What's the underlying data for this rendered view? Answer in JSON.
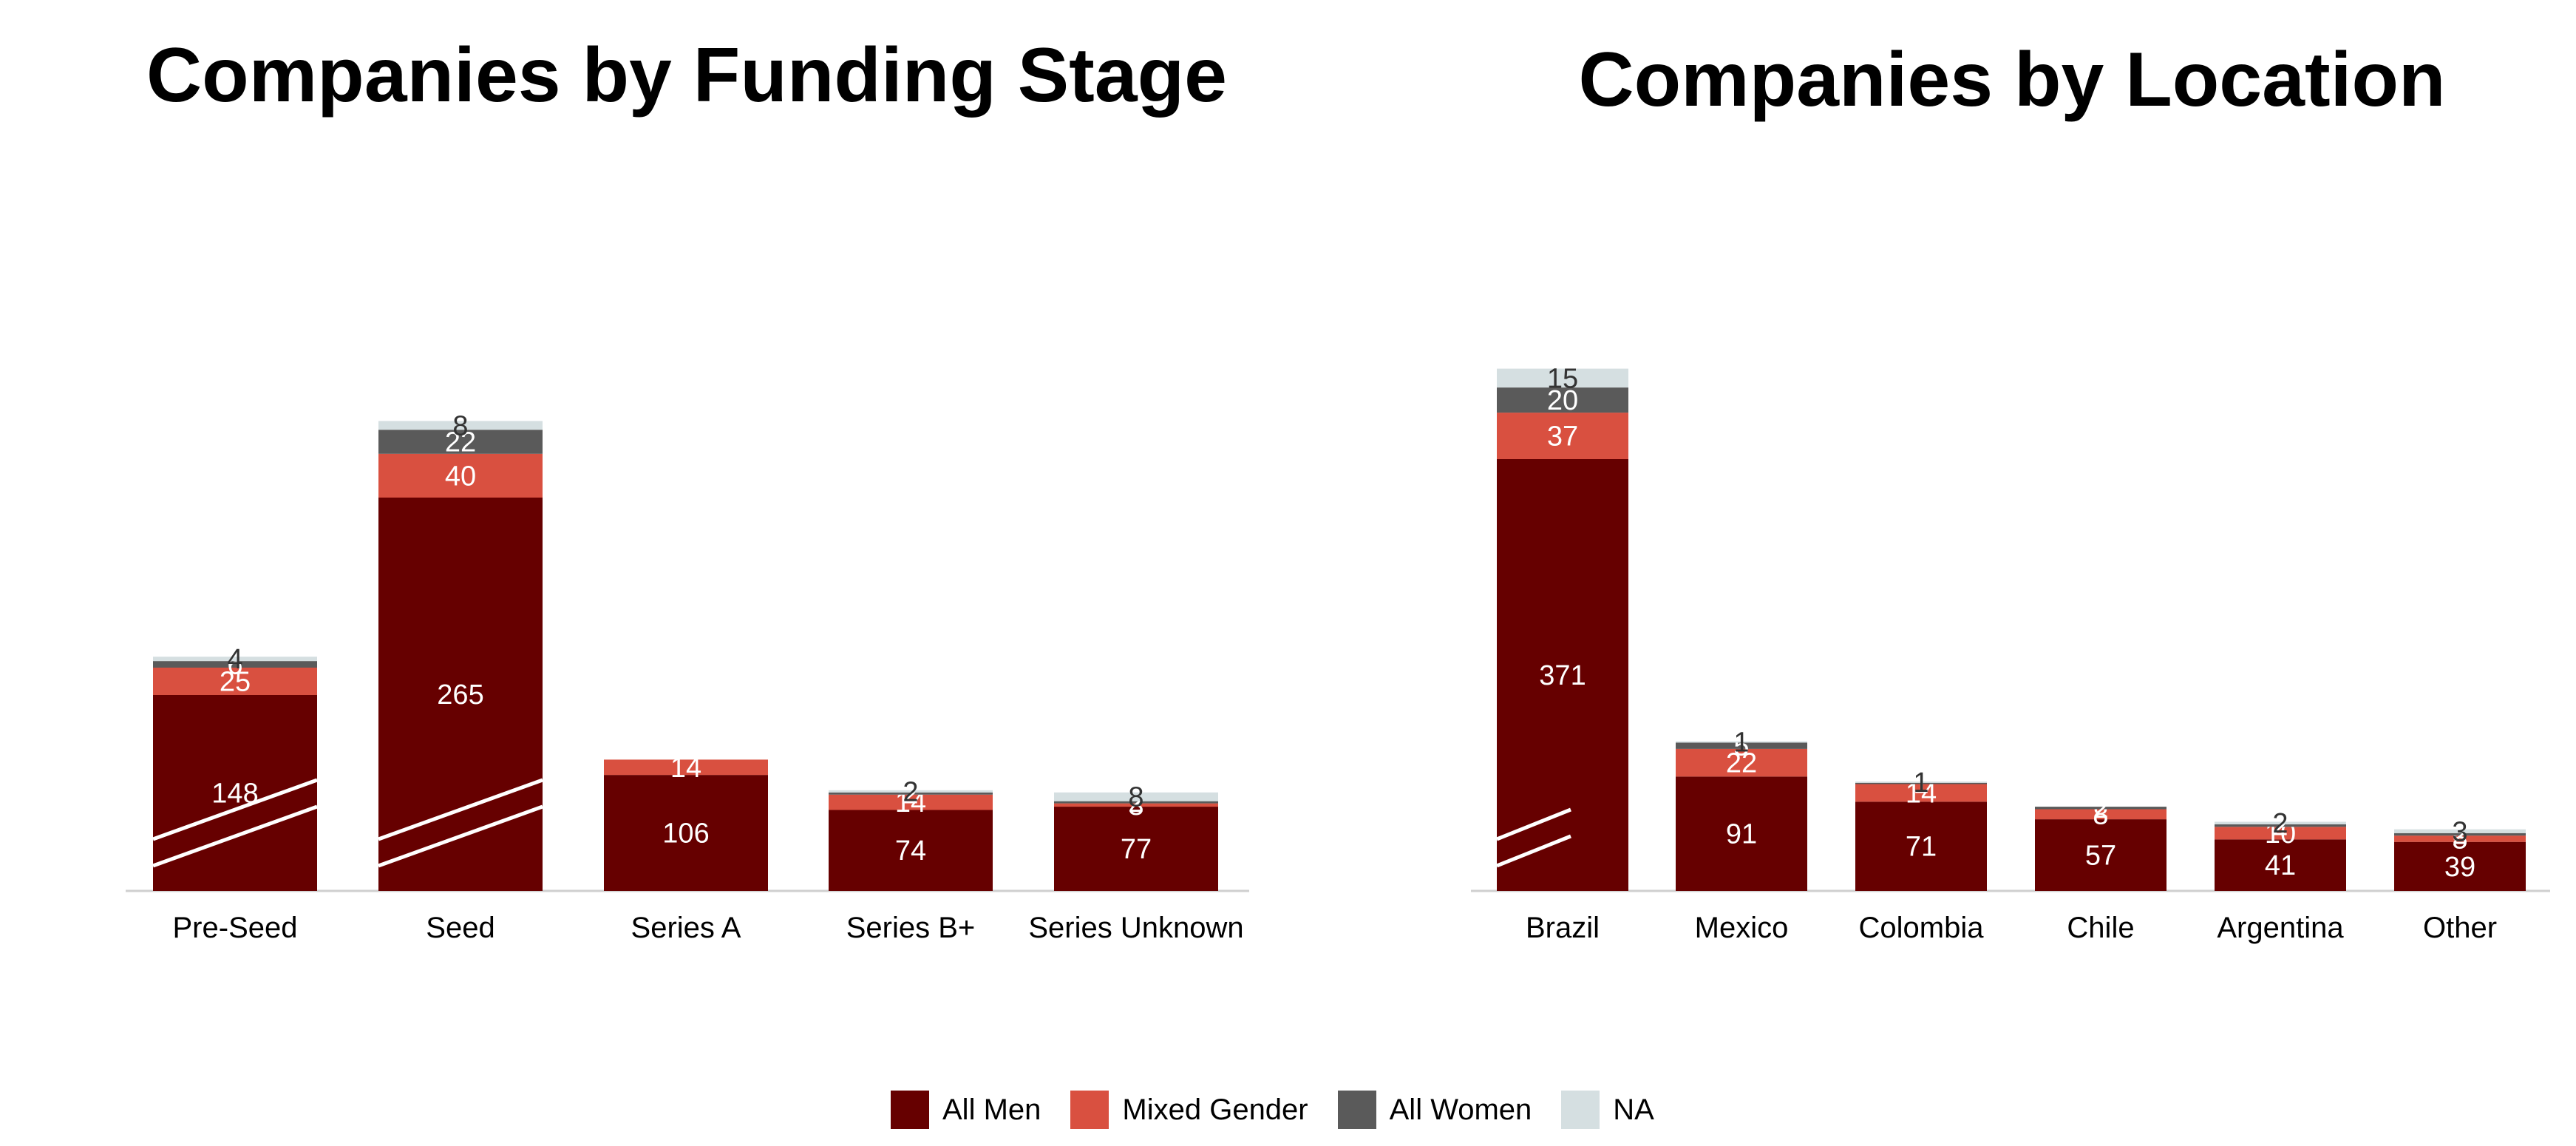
{
  "colors": {
    "all_men": "#660000",
    "mixed_gender": "#d95040",
    "all_women": "#5a5a5a",
    "na": "#d5dfe1"
  },
  "legend": {
    "items": [
      {
        "label": "All Men",
        "color": "#660000"
      },
      {
        "label": "Mixed Gender",
        "color": "#d95040"
      },
      {
        "label": "All Women",
        "color": "#5a5a5a"
      },
      {
        "label": "NA",
        "color": "#d5dfe1"
      }
    ]
  },
  "chart_data": [
    {
      "type": "bar",
      "stacked": true,
      "title": "Companies by Funding Stage",
      "categories": [
        "Pre-Seed",
        "Seed",
        "Series A",
        "Series B+",
        "Series Unknown"
      ],
      "series": [
        {
          "name": "All Men",
          "values": [
            148,
            265,
            106,
            74,
            77
          ]
        },
        {
          "name": "Mixed Gender",
          "values": [
            25,
            40,
            14,
            14,
            3
          ]
        },
        {
          "name": "All Women",
          "values": [
            6,
            22,
            0,
            2,
            2
          ]
        },
        {
          "name": "NA",
          "values": [
            4,
            8,
            0,
            2,
            8
          ]
        }
      ],
      "axis_breaks": [
        "Pre-Seed",
        "Seed"
      ],
      "grid": false
    },
    {
      "type": "bar",
      "stacked": true,
      "title": "Companies by Location",
      "categories": [
        "Brazil",
        "Mexico",
        "Colombia",
        "Chile",
        "Argentina",
        "Other"
      ],
      "series": [
        {
          "name": "All Men",
          "values": [
            371,
            91,
            71,
            57,
            41,
            39
          ]
        },
        {
          "name": "Mixed Gender",
          "values": [
            37,
            22,
            14,
            8,
            10,
            5
          ]
        },
        {
          "name": "All Women",
          "values": [
            20,
            5,
            1,
            2,
            2,
            2
          ]
        },
        {
          "name": "NA",
          "values": [
            15,
            1,
            1,
            0,
            2,
            3
          ]
        }
      ],
      "axis_breaks": [
        "Brazil"
      ],
      "grid": false
    }
  ]
}
